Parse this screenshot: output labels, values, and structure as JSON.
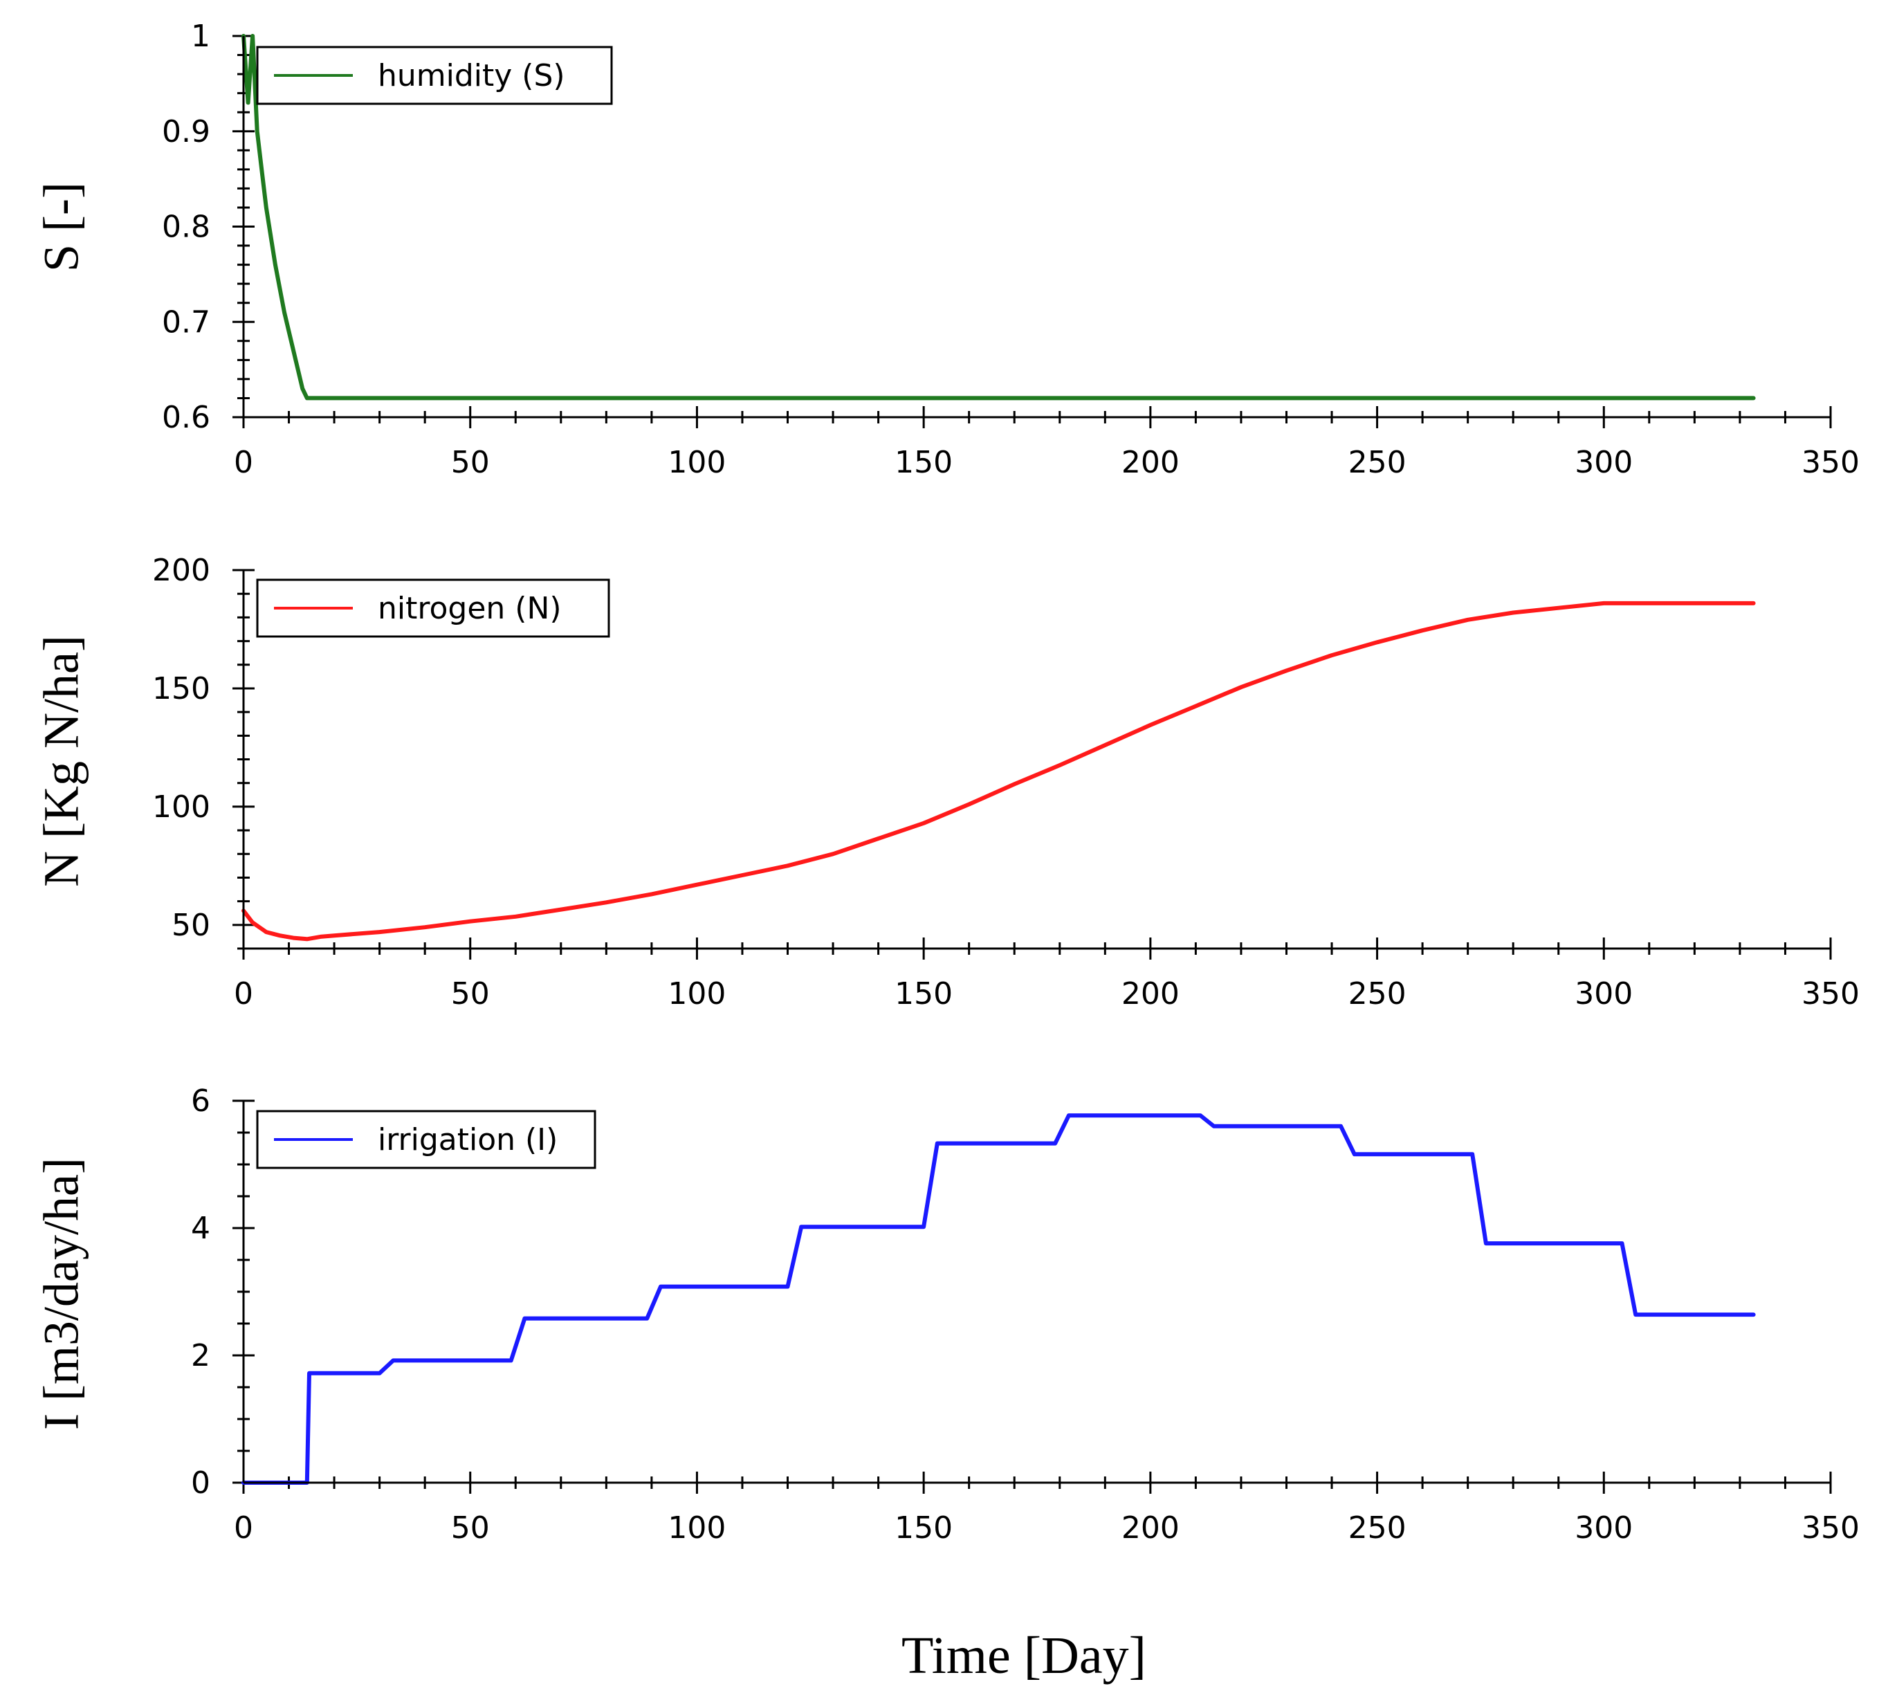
{
  "figure": {
    "xlabel": "Time [Day]"
  },
  "chart_data": [
    {
      "type": "line",
      "ylabel": "S [-]",
      "xlim": [
        0,
        350
      ],
      "ylim": [
        0.6,
        1
      ],
      "xticks": [
        "0",
        "50",
        "100",
        "150",
        "200",
        "250",
        "300",
        "350"
      ],
      "yticks": [
        "0.6",
        "0.7",
        "0.8",
        "0.9",
        "1"
      ],
      "yminor_step": 0.02,
      "series": [
        {
          "name": "humidity (S)",
          "color": "#1f7a1f",
          "x": [
            0,
            1,
            2,
            3,
            4,
            5,
            7,
            9,
            11,
            13,
            14,
            20,
            50,
            100,
            150,
            200,
            250,
            300,
            333
          ],
          "y": [
            1.0,
            0.93,
            1.0,
            0.9,
            0.86,
            0.82,
            0.76,
            0.71,
            0.67,
            0.63,
            0.62,
            0.62,
            0.62,
            0.62,
            0.62,
            0.62,
            0.62,
            0.62,
            0.62
          ]
        }
      ]
    },
    {
      "type": "line",
      "ylabel": "N [Kg N/ha]",
      "xlim": [
        0,
        350
      ],
      "ylim": [
        40,
        200
      ],
      "xticks": [
        "0",
        "50",
        "100",
        "150",
        "200",
        "250",
        "300",
        "350"
      ],
      "yticks": [
        "50",
        "100",
        "150",
        "200"
      ],
      "yminor_step": 10,
      "series": [
        {
          "name": "nitrogen (N)",
          "color": "#ff1a1a",
          "x": [
            0,
            2,
            5,
            8,
            11,
            14,
            17,
            20,
            30,
            40,
            50,
            60,
            70,
            80,
            90,
            100,
            110,
            120,
            130,
            140,
            150,
            160,
            170,
            180,
            190,
            200,
            210,
            220,
            230,
            240,
            250,
            260,
            270,
            280,
            290,
            300,
            310,
            320,
            333
          ],
          "y": [
            56,
            51,
            47,
            45.5,
            44.5,
            44,
            45,
            45.5,
            47,
            49,
            51.5,
            53.5,
            56.5,
            59.5,
            63,
            67,
            71,
            75,
            80,
            86.5,
            93,
            101,
            109.5,
            117.5,
            126,
            134.5,
            142.5,
            150.5,
            157.5,
            164,
            169.5,
            174.5,
            179,
            182,
            184,
            186,
            186,
            186,
            186
          ]
        }
      ]
    },
    {
      "type": "line",
      "ylabel": "I [m3/day/ha]",
      "xlim": [
        0,
        350
      ],
      "ylim": [
        0,
        6
      ],
      "xticks": [
        "0",
        "50",
        "100",
        "150",
        "200",
        "250",
        "300",
        "350"
      ],
      "yticks": [
        "0",
        "2",
        "4",
        "6"
      ],
      "yminor_step": 0.5,
      "series": [
        {
          "name": "irrigation (I)",
          "color": "#1a1aff",
          "x": [
            0,
            14,
            14.5,
            30,
            33,
            59,
            62,
            89,
            92,
            120,
            123,
            150,
            153,
            179,
            182,
            211,
            214,
            242,
            245,
            271,
            274,
            304,
            307,
            333
          ],
          "y": [
            0,
            0,
            1.72,
            1.72,
            1.92,
            1.92,
            2.58,
            2.58,
            3.08,
            3.08,
            4.02,
            4.02,
            5.33,
            5.33,
            5.77,
            5.77,
            5.6,
            5.6,
            5.16,
            5.16,
            3.76,
            3.76,
            2.64,
            2.64
          ]
        }
      ]
    }
  ]
}
